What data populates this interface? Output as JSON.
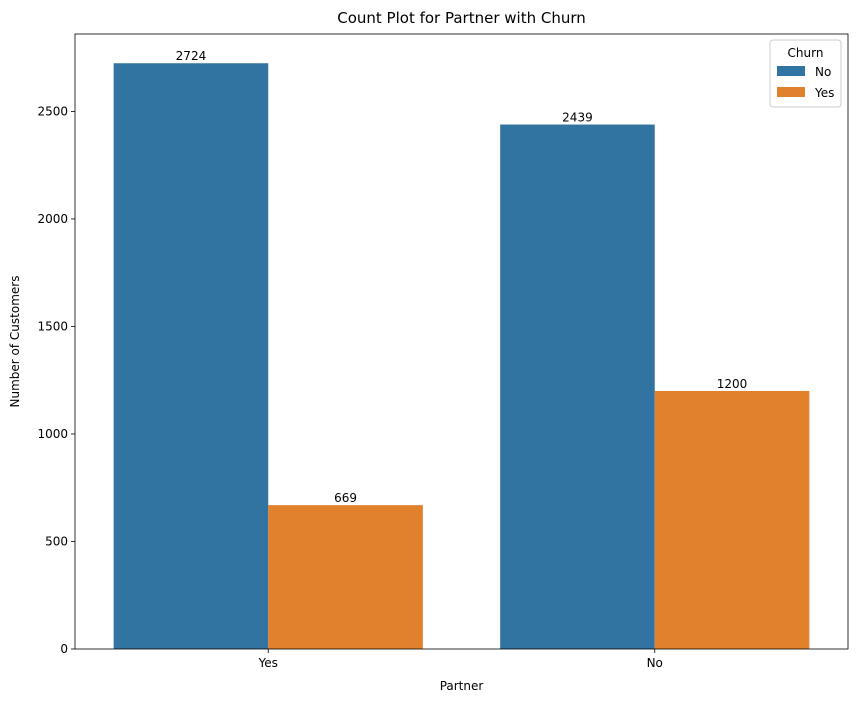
{
  "chart_data": {
    "type": "bar",
    "title": "Count Plot for Partner with Churn",
    "xlabel": "Partner",
    "ylabel": "Number of Customers",
    "categories": [
      "Yes",
      "No"
    ],
    "series": [
      {
        "name": "No",
        "values": [
          2724,
          2439
        ],
        "color": "#3274a1",
        "labels": [
          "2724",
          "2439"
        ]
      },
      {
        "name": "Yes",
        "values": [
          669,
          1200
        ],
        "color": "#e1812c",
        "labels": [
          "669",
          "1200"
        ]
      }
    ],
    "ylim": [
      0,
      2860
    ],
    "yticks": [
      0,
      500,
      1000,
      1500,
      2000,
      2500
    ],
    "ytick_labels": [
      "0",
      "500",
      "1000",
      "1500",
      "2000",
      "2500"
    ],
    "grid": false,
    "legend": {
      "title": "Churn",
      "placement": "top-right"
    }
  }
}
